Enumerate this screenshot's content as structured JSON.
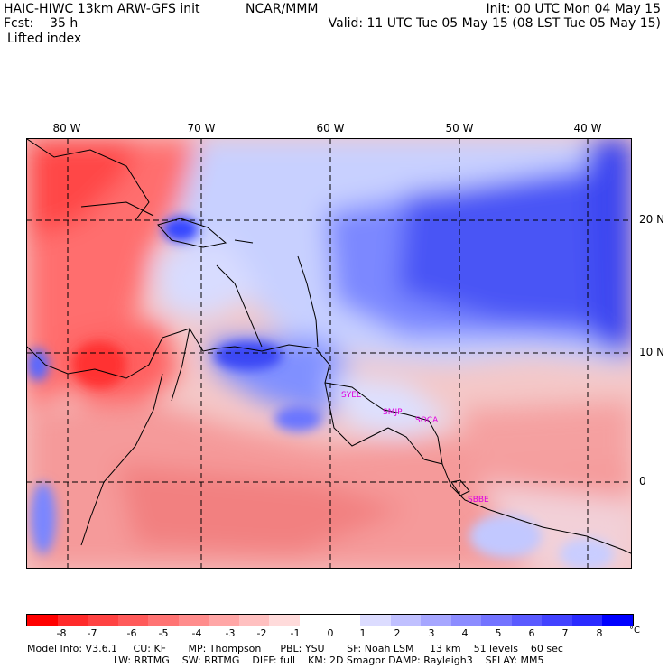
{
  "header": {
    "model": "HAIC-HIWC 13km ARW-GFS init",
    "fcst": "Fcst:    35 h",
    "field": "Lifted index",
    "center": "NCAR/MMM",
    "init": "Init: 00 UTC Mon 04 May 15",
    "valid": "Valid: 11 UTC Tue 05 May 15 (08 LST Tue 05 May 15)"
  },
  "map": {
    "lon_labels": [
      "80 W",
      "70 W",
      "60 W",
      "50 W",
      "40 W"
    ],
    "lat_labels": [
      "20 N",
      "10 N",
      "0"
    ],
    "stations": [
      "SYEL",
      "SMJP",
      "SOCA",
      "SBBE"
    ]
  },
  "colorbar": {
    "colors": [
      "#ff0000",
      "#ff2a2a",
      "#ff4242",
      "#ff5a5a",
      "#ff7373",
      "#ff8c8c",
      "#ffa6a6",
      "#ffc0c0",
      "#ffdbdb",
      "#ffffff",
      "#ffffff",
      "#dcdcff",
      "#c0c0ff",
      "#a6a6ff",
      "#8c8cff",
      "#7373ff",
      "#5a5aff",
      "#4242ff",
      "#2a2aff",
      "#0000ff"
    ],
    "ticks": [
      "-8",
      "-7",
      "-6",
      "-5",
      "-4",
      "-3",
      "-2",
      "-1",
      "0",
      "1",
      "2",
      "3",
      "4",
      "5",
      "6",
      "7",
      "8"
    ],
    "unit": "°C"
  },
  "footer": {
    "line1": "Model Info: V3.6.1     CU: KF       MP: Thompson      PBL: YSU       SF: Noah LSM     13 km    51 levels    60 sec",
    "line2": "LW: RRTMG    SW: RRTMG    DIFF: full    KM: 2D Smagor DAMP: Rayleigh3    SFLAY: MM5"
  }
}
